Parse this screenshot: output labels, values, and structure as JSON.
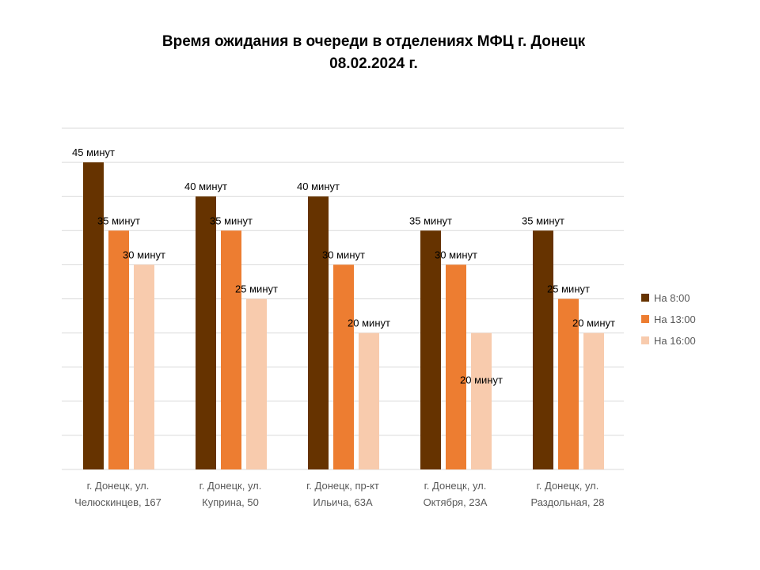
{
  "chart_data": {
    "type": "bar",
    "title_lines": [
      "Время ожидания в очереди в отделениях МФЦ г. Донецк",
      "08.02.2024 г."
    ],
    "categories": [
      [
        "г. Донецк, ул.",
        "Челюскинцев, 167"
      ],
      [
        "г. Донецк, ул.",
        "Куприна, 50"
      ],
      [
        "г. Донецк, пр-кт",
        "Ильича, 63А"
      ],
      [
        "г. Донецк, ул.",
        "Октября, 23А"
      ],
      [
        "г. Донецк, ул.",
        "Раздольная, 28"
      ]
    ],
    "series": [
      {
        "name": "На 8:00",
        "color": "#663300",
        "values": [
          45,
          40,
          40,
          35,
          35
        ]
      },
      {
        "name": "На 13:00",
        "color": "#ed7d31",
        "values": [
          35,
          35,
          30,
          30,
          25
        ]
      },
      {
        "name": "На 16:00",
        "color": "#f8cbad",
        "values": [
          30,
          25,
          20,
          20,
          20
        ]
      }
    ],
    "data_labels": [
      [
        "45 минут",
        "40 минут",
        "40 минут",
        "35 минут",
        "35 минут"
      ],
      [
        "35 минут",
        "35 минут",
        "30 минут",
        "30 минут",
        "25 минут"
      ],
      [
        "30 минут",
        "25 минут",
        "20 минут",
        "20 минут",
        "20 минут"
      ]
    ],
    "ylim": [
      0,
      50
    ],
    "grid": true,
    "legend_position": "right"
  }
}
